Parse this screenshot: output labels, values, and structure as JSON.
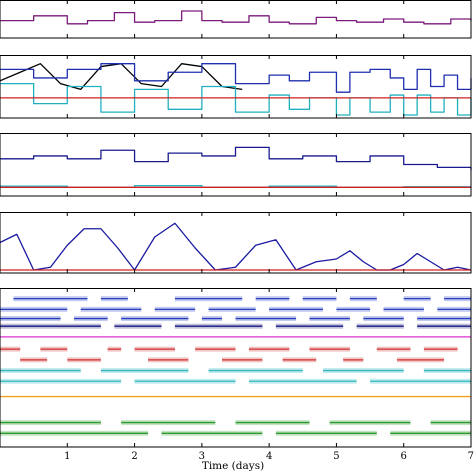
{
  "chart_data": {
    "type": "line",
    "xlabel": "Time (days)",
    "xlim": [
      0,
      7
    ],
    "x_ticks": [
      1,
      2,
      3,
      4,
      5,
      6,
      7
    ],
    "panels": [
      {
        "ylim": [
          0,
          1
        ],
        "series": [
          {
            "color": "#7a1a7a",
            "style": "step",
            "x": [
              0,
              0.5,
              1,
              1.3,
              1.7,
              2,
              2.3,
              2.7,
              3,
              3.3,
              3.7,
              4,
              4.3,
              4.7,
              5,
              5.3,
              5.7,
              6,
              6.3,
              6.7,
              7
            ],
            "y": [
              0.45,
              0.6,
              0.35,
              0.45,
              0.7,
              0.4,
              0.45,
              0.75,
              0.45,
              0.4,
              0.6,
              0.4,
              0.35,
              0.55,
              0.45,
              0.4,
              0.5,
              0.4,
              0.35,
              0.5,
              0.45
            ]
          }
        ]
      },
      {
        "ylim": [
          0,
          1
        ],
        "series": [
          {
            "color": "#000000",
            "style": "line",
            "x": [
              0,
              0.3,
              0.6,
              0.9,
              1.2,
              1.5,
              1.8,
              2.1,
              2.4,
              2.7,
              3.0,
              3.3,
              3.6
            ],
            "y": [
              0.6,
              0.75,
              0.9,
              0.55,
              0.45,
              0.85,
              0.9,
              0.55,
              0.5,
              0.9,
              0.85,
              0.5,
              0.45
            ]
          },
          {
            "color": "#1f2fb0",
            "style": "step",
            "x": [
              0,
              0.5,
              1,
              1.5,
              2,
              2.5,
              3,
              3.5,
              4,
              4.3,
              4.6,
              5,
              5.2,
              5.5,
              5.8,
              6,
              6.2,
              6.4,
              6.6,
              6.8,
              7
            ],
            "y": [
              0.8,
              0.65,
              0.8,
              0.9,
              0.6,
              0.75,
              0.9,
              0.55,
              0.7,
              0.6,
              0.75,
              0.4,
              0.75,
              0.8,
              0.65,
              0.45,
              0.8,
              0.5,
              0.7,
              0.45,
              0.65
            ]
          },
          {
            "color": "#20b0c0",
            "style": "step",
            "x": [
              0,
              0.5,
              1,
              1.5,
              2,
              2.5,
              3,
              3.5,
              4,
              4.3,
              4.6,
              5,
              5.2,
              5.5,
              5.8,
              6,
              6.2,
              6.4,
              6.6,
              6.8,
              7
            ],
            "y": [
              0.55,
              0.2,
              0.5,
              0.05,
              0.45,
              0.1,
              0.5,
              0.05,
              0.35,
              0.1,
              0.3,
              0.0,
              0.3,
              0.05,
              0.35,
              0.0,
              0.35,
              0.05,
              0.3,
              0.0,
              0.3
            ]
          },
          {
            "color": "#d02020",
            "style": "line",
            "x": [
              0,
              7
            ],
            "y": [
              0.3,
              0.3
            ]
          }
        ]
      },
      {
        "ylim": [
          0,
          1
        ],
        "series": [
          {
            "color": "#1a1a90",
            "style": "step",
            "x": [
              0,
              0.5,
              1,
              1.5,
              2,
              2.5,
              3,
              3.5,
              4,
              4.5,
              5,
              5.5,
              6,
              6.5,
              7
            ],
            "y": [
              0.6,
              0.65,
              0.6,
              0.75,
              0.55,
              0.7,
              0.65,
              0.8,
              0.6,
              0.65,
              0.55,
              0.65,
              0.5,
              0.45,
              0.4
            ]
          },
          {
            "color": "#20b0c0",
            "style": "step",
            "x": [
              0,
              1,
              2,
              3,
              4,
              5,
              6,
              7
            ],
            "y": [
              0.12,
              0.1,
              0.13,
              0.1,
              0.12,
              0.1,
              0.11,
              0.1
            ]
          },
          {
            "color": "#d02020",
            "style": "line",
            "x": [
              0,
              7
            ],
            "y": [
              0.1,
              0.1
            ]
          }
        ]
      },
      {
        "ylim": [
          0,
          1
        ],
        "series": [
          {
            "color": "#1a1aa0",
            "style": "line",
            "x": [
              0,
              0.25,
              0.5,
              0.75,
              1.0,
              1.25,
              1.5,
              1.75,
              2.0,
              2.3,
              2.6,
              2.9,
              3.2,
              3.5,
              3.8,
              4.1,
              4.4,
              4.7,
              5.0,
              5.2,
              5.4,
              5.6,
              5.8,
              6.0,
              6.2,
              6.4,
              6.6,
              6.8,
              7.0
            ],
            "y": [
              0.5,
              0.65,
              0.0,
              0.05,
              0.45,
              0.75,
              0.75,
              0.4,
              0.0,
              0.6,
              0.85,
              0.4,
              0.0,
              0.05,
              0.45,
              0.55,
              0.0,
              0.15,
              0.2,
              0.35,
              0.15,
              0.0,
              0.0,
              0.1,
              0.3,
              0.15,
              0.0,
              0.05,
              0.0
            ]
          },
          {
            "color": "#d02020",
            "style": "line",
            "x": [
              0,
              7
            ],
            "y": [
              0.0,
              0.0
            ]
          }
        ]
      },
      {
        "ylim": [
          0,
          1
        ],
        "series": [
          {
            "color": "#2a3fc0",
            "style": "segments",
            "y": 0.95,
            "segments": [
              [
                0.2,
                1.3
              ],
              [
                1.5,
                1.9
              ],
              [
                2.6,
                3.6
              ],
              [
                3.8,
                4.3
              ],
              [
                4.5,
                5.0
              ],
              [
                5.2,
                5.6
              ],
              [
                6.0,
                6.4
              ],
              [
                6.6,
                7.0
              ]
            ]
          },
          {
            "color": "#2a3fc0",
            "style": "segments",
            "y": 0.88,
            "segments": [
              [
                0.0,
                1.0
              ],
              [
                1.2,
                2.1
              ],
              [
                2.3,
                2.9
              ],
              [
                3.1,
                3.8
              ],
              [
                4.0,
                4.8
              ],
              [
                5.0,
                5.5
              ],
              [
                5.7,
                6.3
              ],
              [
                6.5,
                7.0
              ]
            ]
          },
          {
            "color": "#2a3fc0",
            "style": "segments",
            "y": 0.82,
            "segments": [
              [
                0.0,
                0.9
              ],
              [
                1.1,
                1.6
              ],
              [
                1.8,
                2.8
              ],
              [
                3.0,
                3.3
              ],
              [
                3.5,
                4.4
              ],
              [
                4.6,
                5.2
              ],
              [
                5.4,
                6.0
              ],
              [
                6.2,
                7.0
              ]
            ]
          },
          {
            "color": "#1a1a80",
            "style": "segments",
            "y": 0.77,
            "segments": [
              [
                0.0,
                1.5
              ],
              [
                1.7,
                2.4
              ],
              [
                2.6,
                3.9
              ],
              [
                4.1,
                5.1
              ],
              [
                5.3,
                6.0
              ],
              [
                6.2,
                7.0
              ]
            ]
          },
          {
            "color": "#e030d0",
            "style": "line",
            "x": [
              0,
              7
            ],
            "y": [
              0.7,
              0.7
            ]
          },
          {
            "color": "#d03030",
            "style": "segments",
            "y": 0.62,
            "segments": [
              [
                0.0,
                0.3
              ],
              [
                0.6,
                1.0
              ],
              [
                1.6,
                1.8
              ],
              [
                2.0,
                2.6
              ],
              [
                2.9,
                3.5
              ],
              [
                3.7,
                4.3
              ],
              [
                4.6,
                5.2
              ],
              [
                5.6,
                6.1
              ],
              [
                6.3,
                6.8
              ]
            ]
          },
          {
            "color": "#d03030",
            "style": "segments",
            "y": 0.55,
            "segments": [
              [
                0.3,
                0.7
              ],
              [
                1.0,
                1.5
              ],
              [
                2.2,
                2.8
              ],
              [
                3.3,
                3.9
              ],
              [
                4.2,
                4.7
              ],
              [
                5.1,
                5.4
              ],
              [
                5.9,
                6.6
              ]
            ]
          },
          {
            "color": "#30b8c0",
            "style": "segments",
            "y": 0.48,
            "segments": [
              [
                0.0,
                1.2
              ],
              [
                1.5,
                2.8
              ],
              [
                3.1,
                4.5
              ],
              [
                4.8,
                6.0
              ],
              [
                6.3,
                7.0
              ]
            ]
          },
          {
            "color": "#30b8c0",
            "style": "segments",
            "y": 0.41,
            "segments": [
              [
                0.0,
                1.8
              ],
              [
                2.0,
                3.5
              ],
              [
                3.7,
                5.3
              ],
              [
                5.5,
                7.0
              ]
            ]
          },
          {
            "color": "#f0a020",
            "style": "line",
            "x": [
              0,
              7
            ],
            "y": [
              0.31,
              0.31
            ]
          },
          {
            "color": "#2a9a2a",
            "style": "segments",
            "y": 0.14,
            "segments": [
              [
                0.0,
                1.5
              ],
              [
                1.8,
                3.2
              ],
              [
                3.5,
                4.6
              ],
              [
                4.9,
                6.1
              ],
              [
                6.4,
                7.0
              ]
            ]
          },
          {
            "color": "#2a9a2a",
            "style": "segments",
            "y": 0.07,
            "segments": [
              [
                0.0,
                2.2
              ],
              [
                2.4,
                3.9
              ],
              [
                4.1,
                5.6
              ],
              [
                5.8,
                7.0
              ]
            ]
          }
        ]
      }
    ]
  }
}
